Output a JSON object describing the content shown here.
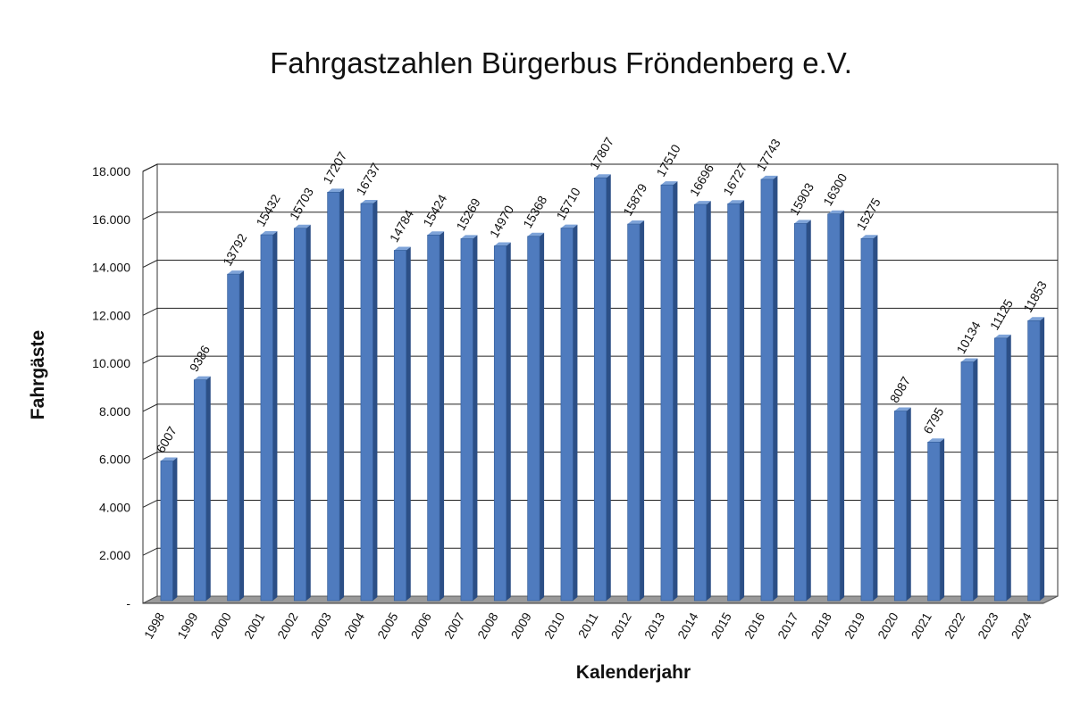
{
  "chart_data": {
    "type": "bar",
    "title": "Fahrgastzahlen Bürgerbus Fröndenberg e.V.",
    "xlabel": "Kalenderjahr",
    "ylabel": "Fahrgäste",
    "ylim": [
      0,
      18000
    ],
    "yticks": [
      0,
      2000,
      4000,
      6000,
      8000,
      10000,
      12000,
      14000,
      16000,
      18000
    ],
    "ytick_labels": [
      "-",
      "2.000",
      "4.000",
      "6.000",
      "8.000",
      "10.000",
      "12.000",
      "14.000",
      "16.000",
      "18.000"
    ],
    "grid": true,
    "bar_color": "#4F7BBE",
    "categories": [
      "1998",
      "1999",
      "2000",
      "2001",
      "2002",
      "2003",
      "2004",
      "2005",
      "2006",
      "2007",
      "2008",
      "2009",
      "2010",
      "2011",
      "2012",
      "2013",
      "2014",
      "2015",
      "2016",
      "2017",
      "2018",
      "2019",
      "2020",
      "2021",
      "2022",
      "2023",
      "2024"
    ],
    "values": [
      6007,
      9386,
      13792,
      15432,
      15703,
      17207,
      16737,
      14784,
      15424,
      15269,
      14970,
      15368,
      15710,
      17807,
      15879,
      17510,
      16696,
      16727,
      17743,
      15903,
      16300,
      15275,
      8087,
      6795,
      10134,
      11125,
      11853
    ],
    "data_labels": [
      "6007",
      "9386",
      "13792",
      "15432",
      "15703",
      "17207",
      "16737",
      "14784",
      "15424",
      "15269",
      "14970",
      "15368",
      "15710",
      "17807",
      "15879",
      "17510",
      "16696",
      "16727",
      "17743",
      "15903",
      "16300",
      "15275",
      "8087",
      "6795",
      "10134",
      "11125",
      "11853"
    ]
  }
}
